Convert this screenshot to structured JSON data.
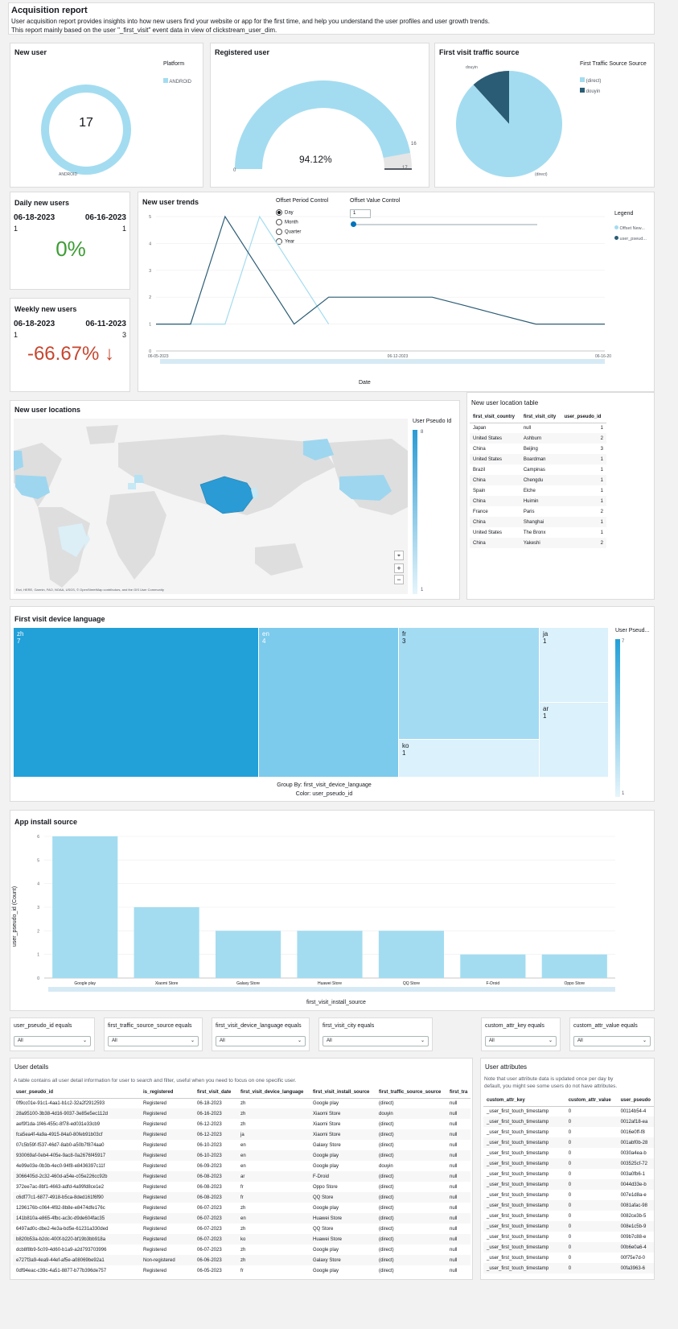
{
  "header": {
    "title": "Acquisition report",
    "desc1": "User acquisition report provides insights into how new users find your website or app for the first time, and help you understand the user profiles and user growth trends.",
    "desc2": "This report mainly based on the user \"_first_visit\" event data in view of clickstream_user_dim."
  },
  "new_user": {
    "title": "New user",
    "value": "17",
    "legend_title": "Platform",
    "legend_item": "ANDROID",
    "slice_label": "ANDROID",
    "color": "#a3dcf0"
  },
  "registered": {
    "title": "Registered user",
    "percent": "94.12%",
    "fraction": 0.9412,
    "min": "0",
    "max": "17",
    "target": "16"
  },
  "traffic": {
    "title": "First visit traffic source",
    "legend_title": "First Traffic Source Source",
    "items": [
      {
        "name": "(direct)",
        "value": 15,
        "color": "#a3dcf0"
      },
      {
        "name": "douyin",
        "value": 2,
        "color": "#2b5c75"
      }
    ],
    "label_direct": "(direct)",
    "label_douyin": "douyin"
  },
  "daily": {
    "title": "Daily new users",
    "date1": "06-18-2023",
    "date2": "06-16-2023",
    "v1": "1",
    "v2": "1",
    "change": "0%",
    "change_color": "#3c9d33"
  },
  "weekly": {
    "title": "Weekly new users",
    "date1": "06-18-2023",
    "date2": "06-11-2023",
    "v1": "1",
    "v2": "3",
    "change": "-66.67% ↓",
    "change_color": "#c7462f"
  },
  "trends": {
    "title": "New user trends",
    "period_label": "Offset Period Control",
    "periods": [
      "Day",
      "Month",
      "Quarter",
      "Year"
    ],
    "offset_label": "Offset Value Control",
    "offset_value": "1",
    "legend_title": "Legend",
    "legend_items": [
      "Offset New...",
      "user_pseud..."
    ],
    "xlabel": "Date",
    "x_ticks": [
      "06-05-2023",
      "06-12-2023",
      "06-16-20"
    ],
    "y_ticks": [
      "0",
      "1",
      "2",
      "3",
      "4",
      "5"
    ]
  },
  "chart_data": [
    {
      "type": "line",
      "title": "New user trends",
      "xlabel": "Date",
      "x": [
        "06-05-2023",
        "06-06-2023",
        "06-07-2023",
        "06-08-2023",
        "06-09-2023",
        "06-10-2023",
        "06-11-2023",
        "06-12-2023",
        "06-13-2023",
        "06-14-2023",
        "06-15-2023",
        "06-16-2023",
        "06-17-2023",
        "06-18-2023"
      ],
      "ylim": [
        0,
        5
      ],
      "series": [
        {
          "name": "Offset New...",
          "color": "#a3dcf0",
          "values": [
            1,
            1,
            1,
            5,
            3,
            1,
            null,
            null,
            null,
            null,
            null,
            null,
            null,
            null
          ]
        },
        {
          "name": "user_pseud...",
          "color": "#2b5c75",
          "values": [
            1,
            1,
            5,
            3,
            1,
            2,
            2,
            2,
            2,
            1.67,
            1.33,
            1,
            1,
            1
          ]
        }
      ]
    },
    {
      "type": "bar",
      "title": "App install source",
      "xlabel": "first_visit_install_source",
      "ylabel": "user_pseudo_id (Count)",
      "categories": [
        "Google play",
        "Xiaomi Store",
        "Galaxy Store",
        "Huawei Store",
        "QQ Store",
        "F-Droid",
        "Oppo Store"
      ],
      "values": [
        6,
        3,
        2,
        2,
        2,
        1,
        1
      ],
      "ylim": [
        0,
        6
      ],
      "y_ticks": [
        "0",
        "1",
        "2",
        "3",
        "4",
        "5",
        "6"
      ],
      "color": "#a3dcf0"
    },
    {
      "type": "treemap",
      "title": "First visit device language",
      "categories": [
        "zh",
        "en",
        "fr",
        "ja",
        "ar",
        "ko"
      ],
      "values": [
        7,
        4,
        3,
        1,
        1,
        1
      ]
    }
  ],
  "install": {
    "title": "App install source",
    "xlabel": "first_visit_install_source",
    "ylabel": "user_pseudo_id (Count)"
  },
  "map": {
    "title": "New user locations",
    "legend_title": "User Pseudo Id",
    "legend_max": "8",
    "legend_min": "1",
    "attribution": "Esri, HERE, Garmin, FAO, NOAA, USGS, © OpenStreetMap contributors, and the GIS User Community"
  },
  "loc_table": {
    "title": "New user location table",
    "columns": [
      "first_visit_country",
      "first_visit_city",
      "user_pseudo_id"
    ],
    "rows": [
      [
        "Japan",
        "null",
        "1"
      ],
      [
        "United States",
        "Ashburn",
        "2"
      ],
      [
        "China",
        "Beijing",
        "3"
      ],
      [
        "United States",
        "Boardman",
        "1"
      ],
      [
        "Brazil",
        "Campinas",
        "1"
      ],
      [
        "China",
        "Chengdu",
        "1"
      ],
      [
        "Spain",
        "Elche",
        "1"
      ],
      [
        "China",
        "Huimin",
        "1"
      ],
      [
        "France",
        "Paris",
        "2"
      ],
      [
        "China",
        "Shanghai",
        "1"
      ],
      [
        "United States",
        "The Bronx",
        "1"
      ],
      [
        "China",
        "Yakeshi",
        "2"
      ]
    ]
  },
  "lang": {
    "title": "First visit device language",
    "cells": [
      {
        "name": "zh",
        "value": "7"
      },
      {
        "name": "en",
        "value": "4"
      },
      {
        "name": "fr",
        "value": "3"
      },
      {
        "name": "ja",
        "value": "1"
      },
      {
        "name": "ar",
        "value": "1"
      },
      {
        "name": "ko",
        "value": "1"
      }
    ],
    "group_by": "Group By: first_visit_device_language",
    "color_by": "Color: user_pseudo_id",
    "legend_title": "User Pseud...",
    "legend_max": "7",
    "legend_min": "1"
  },
  "filters": [
    {
      "label": "user_pseudo_id equals",
      "value": "All"
    },
    {
      "label": "first_traffic_source_source equals",
      "value": "All"
    },
    {
      "label": "first_visit_device_language equals",
      "value": "All"
    },
    {
      "label": "first_visit_city equals",
      "value": "All"
    },
    {
      "label": "custom_attr_key equals",
      "value": "All"
    },
    {
      "label": "custom_attr_value equals",
      "value": "All"
    }
  ],
  "user_details": {
    "title": "User details",
    "desc": "A table contains all user detail information for user to search and filter, useful when you need to focus on one specific user.",
    "columns": [
      "user_pseudo_id",
      "is_registered",
      "first_visit_date",
      "first_visit_device_language",
      "first_visit_install_source",
      "first_traffic_source_source",
      "first_tra"
    ],
    "rows": [
      [
        "0f9cc01e-91c1-4aa1-b1c2-32a2f2912593",
        "Registered",
        "06-18-2023",
        "zh",
        "Google play",
        "(direct)",
        "null"
      ],
      [
        "28a95100-3b38-4d16-9037-3e85e5ec112d",
        "Registered",
        "06-16-2023",
        "zh",
        "Xiaomi Store",
        "douyin",
        "null"
      ],
      [
        "aef9f1da-1f46-455c-8f78-ed031e33cb9",
        "Registered",
        "06-12-2023",
        "zh",
        "Xiaomi Store",
        "(direct)",
        "null"
      ],
      [
        "fca5ea4f-4a9a-4915-84a0-80feb91b03cf",
        "Registered",
        "06-12-2023",
        "ja",
        "Xiaomi Store",
        "(direct)",
        "null"
      ],
      [
        "07c5b59f-f537-46d7-8ab0-a50b7f874aa0",
        "Registered",
        "06-10-2023",
        "en",
        "Galaxy Store",
        "(direct)",
        "null"
      ],
      [
        "930069af-0eb4-405e-9ac8-0a2676f45917",
        "Registered",
        "06-10-2023",
        "en",
        "Google play",
        "(direct)",
        "null"
      ],
      [
        "4e99e03e-0b3b-4ec0-94f8-e8436397c11f",
        "Registered",
        "06-09-2023",
        "en",
        "Google play",
        "douyin",
        "null"
      ],
      [
        "3066405d-2c32-460d-a54e-c05e226cc92b",
        "Registered",
        "06-08-2023",
        "ar",
        "F-Droid",
        "(direct)",
        "null"
      ],
      [
        "372ee7ac-8bf1-4663-adfd-4a99fd8ce1e2",
        "Registered",
        "06-08-2023",
        "fr",
        "Oppo Store",
        "(direct)",
        "null"
      ],
      [
        "c6df77c1-6877-4918-b5ca-8ded161f6f90",
        "Registered",
        "06-08-2023",
        "fr",
        "QQ Store",
        "(direct)",
        "null"
      ],
      [
        "1296176b-c064-4f82-8b8e-e8474dfe176c",
        "Registered",
        "06-07-2023",
        "zh",
        "Google play",
        "(direct)",
        "null"
      ],
      [
        "141b810a-e865-4fbc-ac3c-d9de604fac35",
        "Registered",
        "06-07-2023",
        "en",
        "Huawei Store",
        "(direct)",
        "null"
      ],
      [
        "6497ad0c-dbe2-4e3a-bd5e-61231a330ded",
        "Registered",
        "06-07-2023",
        "zh",
        "QQ Store",
        "(direct)",
        "null"
      ],
      [
        "b820b53a-b2dc-400f-b220-bf19b3bb918a",
        "Registered",
        "06-07-2023",
        "ko",
        "Huawei Store",
        "(direct)",
        "null"
      ],
      [
        "dcb8f8b9-5c09-4d60-b1a9-a2d793703996",
        "Registered",
        "06-07-2023",
        "zh",
        "Google play",
        "(direct)",
        "null"
      ],
      [
        "e727f3a9-4ea9-44ef-af5e-a08069be92a1",
        "Non-registered",
        "06-06-2023",
        "zh",
        "Galaxy Store",
        "(direct)",
        "null"
      ],
      [
        "0df94eac-c39c-4a51-8877-b77b396de757",
        "Registered",
        "06-05-2023",
        "fr",
        "Google play",
        "(direct)",
        "null"
      ]
    ]
  },
  "user_attrs": {
    "title": "User attributes",
    "desc1": "Note that user attribute data is updated once per day by",
    "desc2": "default, you might see some users do not have attributes.",
    "columns": [
      "custom_attr_key",
      "custom_attr_value",
      "user_pseudo"
    ],
    "rows": [
      [
        "_user_first_touch_timestamp",
        "0",
        "00114b54-4"
      ],
      [
        "_user_first_touch_timestamp",
        "0",
        "0012af18-ea"
      ],
      [
        "_user_first_touch_timestamp",
        "0",
        "0016e0ff-f8"
      ],
      [
        "_user_first_touch_timestamp",
        "0",
        "001abf0b-28"
      ],
      [
        "_user_first_touch_timestamp",
        "0",
        "0030a4ea-b"
      ],
      [
        "_user_first_touch_timestamp",
        "0",
        "003525cf-72"
      ],
      [
        "_user_first_touch_timestamp",
        "0",
        "003a0fb6-1"
      ],
      [
        "_user_first_touch_timestamp",
        "0",
        "0044d33e-b"
      ],
      [
        "_user_first_touch_timestamp",
        "0",
        "007e1d8a-e"
      ],
      [
        "_user_first_touch_timestamp",
        "0",
        "0081afac-98"
      ],
      [
        "_user_first_touch_timestamp",
        "0",
        "0082ce3b-5"
      ],
      [
        "_user_first_touch_timestamp",
        "0",
        "008e1c5b-9"
      ],
      [
        "_user_first_touch_timestamp",
        "0",
        "009b7c88-e"
      ],
      [
        "_user_first_touch_timestamp",
        "0",
        "00b6e0a6-4"
      ],
      [
        "_user_first_touch_timestamp",
        "0",
        "00f75e7d-0"
      ],
      [
        "_user_first_touch_timestamp",
        "0",
        "00fa3963-6"
      ]
    ]
  }
}
